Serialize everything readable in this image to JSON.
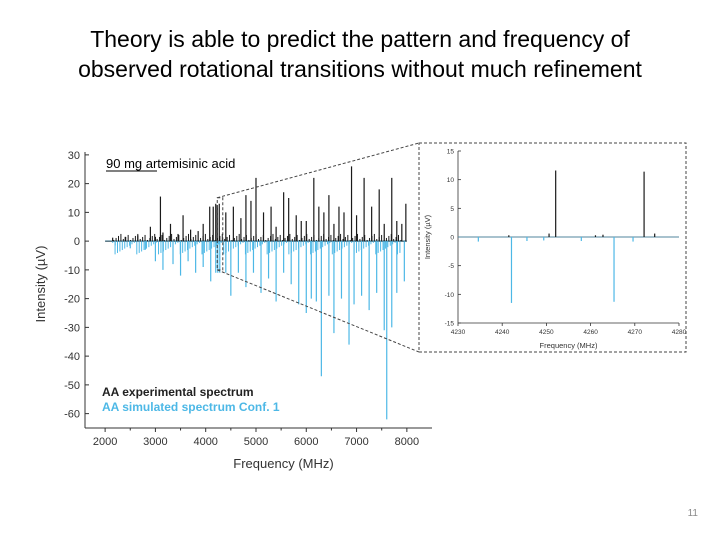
{
  "slide": {
    "title_lines": [
      "Theory is able to predict the pattern and frequency of",
      "observed rotational transitions without much refinement"
    ],
    "page_number": "11"
  },
  "chart_data": [
    {
      "type": "line",
      "annotation": "90 mg artemisinic acid",
      "xlabel": "Frequency (MHz)",
      "ylabel": "Intensity (µV)",
      "xlim": [
        1600,
        8500
      ],
      "ylim": [
        -65,
        31
      ],
      "xticks": [
        2000,
        3000,
        4000,
        5000,
        6000,
        7000,
        8000
      ],
      "yticks": [
        30,
        20,
        10,
        0,
        -10,
        -20,
        -30,
        -40,
        -50,
        -60
      ],
      "grid": false,
      "legend_position": "bottom-left",
      "series": [
        {
          "name": "AA experimental spectrum",
          "color": "#1a1a1a",
          "direction": "up",
          "x": [
            2150,
            2400,
            2650,
            2900,
            3000,
            3100,
            3150,
            3300,
            3450,
            3550,
            3700,
            3850,
            3950,
            4080,
            4150,
            4200,
            4230,
            4270,
            4400,
            4550,
            4700,
            4800,
            4900,
            5000,
            5150,
            5300,
            5400,
            5550,
            5650,
            5800,
            5900,
            6000,
            6150,
            6250,
            6350,
            6450,
            6550,
            6650,
            6750,
            6900,
            7000,
            7150,
            7300,
            7450,
            7550,
            7700,
            7800,
            7900,
            7980
          ],
          "y": [
            1.2,
            1.5,
            2,
            5,
            1.5,
            15.5,
            3,
            6,
            2.5,
            9,
            4,
            3.5,
            6,
            12,
            12,
            13,
            12.5,
            13,
            10,
            12,
            8,
            16,
            14,
            22,
            10,
            12,
            5,
            17,
            15,
            9,
            7,
            7,
            22,
            12,
            10,
            16,
            6,
            12,
            10,
            26,
            9,
            22,
            12,
            18,
            6,
            22,
            7,
            6,
            13
          ]
        },
        {
          "name": "AA simulated spectrum Conf. 1",
          "color": "#4db8e6",
          "direction": "down",
          "x": [
            2200,
            2500,
            2800,
            3000,
            3150,
            3350,
            3500,
            3650,
            3800,
            3950,
            4100,
            4200,
            4240,
            4280,
            4400,
            4500,
            4650,
            4800,
            4950,
            5100,
            5250,
            5400,
            5550,
            5700,
            5850,
            6000,
            6100,
            6200,
            6300,
            6450,
            6550,
            6700,
            6850,
            6950,
            7100,
            7250,
            7400,
            7550,
            7600,
            7700,
            7800,
            7950
          ],
          "y": [
            -1.5,
            -2.5,
            -3,
            -7,
            -10,
            -8,
            -12,
            -7,
            -11,
            -9,
            -14,
            -11,
            -11,
            -11,
            -11,
            -19,
            -11,
            -16,
            -11,
            -18,
            -13,
            -21,
            -11,
            -15,
            -22,
            -25,
            -20,
            -21,
            -47,
            -19,
            -32,
            -20,
            -36,
            -22,
            -19,
            -24,
            -18,
            -31,
            -62,
            -30,
            -18,
            -14
          ]
        }
      ]
    },
    {
      "type": "line",
      "xlabel": "Frequency (MHz)",
      "ylabel": "Intensity (µV)",
      "xlim": [
        4230,
        4280
      ],
      "ylim": [
        -15,
        15
      ],
      "xticks": [
        4230,
        4240,
        4250,
        4260,
        4270,
        4280
      ],
      "yticks": [
        15,
        10,
        5,
        0,
        -5,
        -10,
        -15
      ],
      "grid": false,
      "series": [
        {
          "name": "experimental",
          "color": "#1a1a1a",
          "direction": "up",
          "x": [
            4241.5,
            4250.6,
            4252.1,
            4261.1,
            4262.8,
            4272.1,
            4274.5
          ],
          "y": [
            0.3,
            0.6,
            11.6,
            0.3,
            0.4,
            11.4,
            0.6
          ]
        },
        {
          "name": "simulated",
          "color": "#4db8e6",
          "direction": "down",
          "x": [
            4234.6,
            4242.1,
            4245.6,
            4249.4,
            4257.9,
            4265.3,
            4269.6
          ],
          "y": [
            -0.8,
            -11.5,
            -0.7,
            -0.6,
            -0.7,
            -11.3,
            -0.8
          ]
        }
      ]
    }
  ]
}
